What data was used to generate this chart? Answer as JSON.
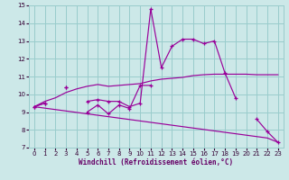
{
  "xlabel": "Windchill (Refroidissement éolien,°C)",
  "x": [
    0,
    1,
    2,
    3,
    4,
    5,
    6,
    7,
    8,
    9,
    10,
    11,
    12,
    13,
    14,
    15,
    16,
    17,
    18,
    19,
    20,
    21,
    22,
    23
  ],
  "line_zigzag": [
    9.3,
    9.5,
    null,
    10.4,
    null,
    9.6,
    9.7,
    9.6,
    9.6,
    9.3,
    9.5,
    14.8,
    11.5,
    12.7,
    13.1,
    13.1,
    12.85,
    13.0,
    11.2,
    9.8,
    null,
    8.6,
    7.9,
    7.3
  ],
  "line_low": [
    9.3,
    9.5,
    null,
    10.4,
    null,
    9.0,
    9.4,
    8.9,
    9.4,
    9.2,
    10.5,
    10.5,
    null,
    null,
    null,
    null,
    null,
    null,
    null,
    null,
    null,
    null,
    null,
    null
  ],
  "line_upper_smooth": [
    9.3,
    9.6,
    9.8,
    10.1,
    10.3,
    10.45,
    10.55,
    10.45,
    10.5,
    10.55,
    10.6,
    10.75,
    10.85,
    10.9,
    10.95,
    11.05,
    11.1,
    11.13,
    11.13,
    11.13,
    11.13,
    11.1,
    11.1,
    11.1
  ],
  "line_lower_smooth": [
    9.3,
    9.22,
    9.14,
    9.06,
    8.98,
    8.9,
    8.82,
    8.74,
    8.66,
    8.58,
    8.5,
    8.42,
    8.34,
    8.26,
    8.18,
    8.1,
    8.02,
    7.94,
    7.86,
    7.78,
    7.7,
    7.62,
    7.54,
    7.3
  ],
  "bg_color": "#cce8e8",
  "grid_color": "#99cccc",
  "line_color": "#990099",
  "ylim": [
    7,
    15
  ],
  "xlim": [
    0,
    23
  ]
}
